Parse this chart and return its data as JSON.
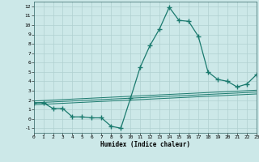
{
  "x": [
    0,
    1,
    2,
    3,
    4,
    5,
    6,
    7,
    8,
    9,
    10,
    11,
    12,
    13,
    14,
    15,
    16,
    17,
    18,
    19,
    20,
    21,
    22,
    23
  ],
  "y_main": [
    1.7,
    1.7,
    1.1,
    1.1,
    0.2,
    0.2,
    0.1,
    0.1,
    -0.8,
    -1.0,
    2.2,
    5.5,
    7.8,
    9.6,
    11.9,
    10.5,
    10.4,
    8.8,
    5.0,
    4.2,
    4.0,
    3.4,
    3.7,
    4.7
  ],
  "y_ref1": [
    1.9,
    1.95,
    2.0,
    2.05,
    2.1,
    2.15,
    2.2,
    2.25,
    2.3,
    2.35,
    2.4,
    2.45,
    2.5,
    2.55,
    2.6,
    2.65,
    2.7,
    2.75,
    2.8,
    2.85,
    2.9,
    2.95,
    3.0,
    3.05
  ],
  "y_ref2": [
    1.7,
    1.75,
    1.8,
    1.85,
    1.9,
    1.95,
    2.0,
    2.05,
    2.1,
    2.15,
    2.2,
    2.25,
    2.3,
    2.35,
    2.4,
    2.45,
    2.5,
    2.55,
    2.6,
    2.65,
    2.7,
    2.75,
    2.8,
    2.85
  ],
  "y_ref3": [
    1.5,
    1.55,
    1.6,
    1.65,
    1.7,
    1.75,
    1.8,
    1.85,
    1.9,
    1.95,
    2.0,
    2.05,
    2.1,
    2.15,
    2.2,
    2.25,
    2.3,
    2.35,
    2.4,
    2.45,
    2.5,
    2.55,
    2.6,
    2.65
  ],
  "line_color": "#1a7a6e",
  "bg_color": "#cce8e8",
  "grid_color": "#b0d0d0",
  "xlabel": "Humidex (Indice chaleur)",
  "xlim": [
    0,
    23
  ],
  "ylim": [
    -1.5,
    12.5
  ],
  "xticks": [
    0,
    1,
    2,
    3,
    4,
    5,
    6,
    7,
    8,
    9,
    10,
    11,
    12,
    13,
    14,
    15,
    16,
    17,
    18,
    19,
    20,
    21,
    22,
    23
  ],
  "yticks": [
    -1,
    0,
    1,
    2,
    3,
    4,
    5,
    6,
    7,
    8,
    9,
    10,
    11,
    12
  ],
  "marker": "+",
  "markersize": 4,
  "linewidth": 0.9,
  "ref_linewidth": 0.7
}
